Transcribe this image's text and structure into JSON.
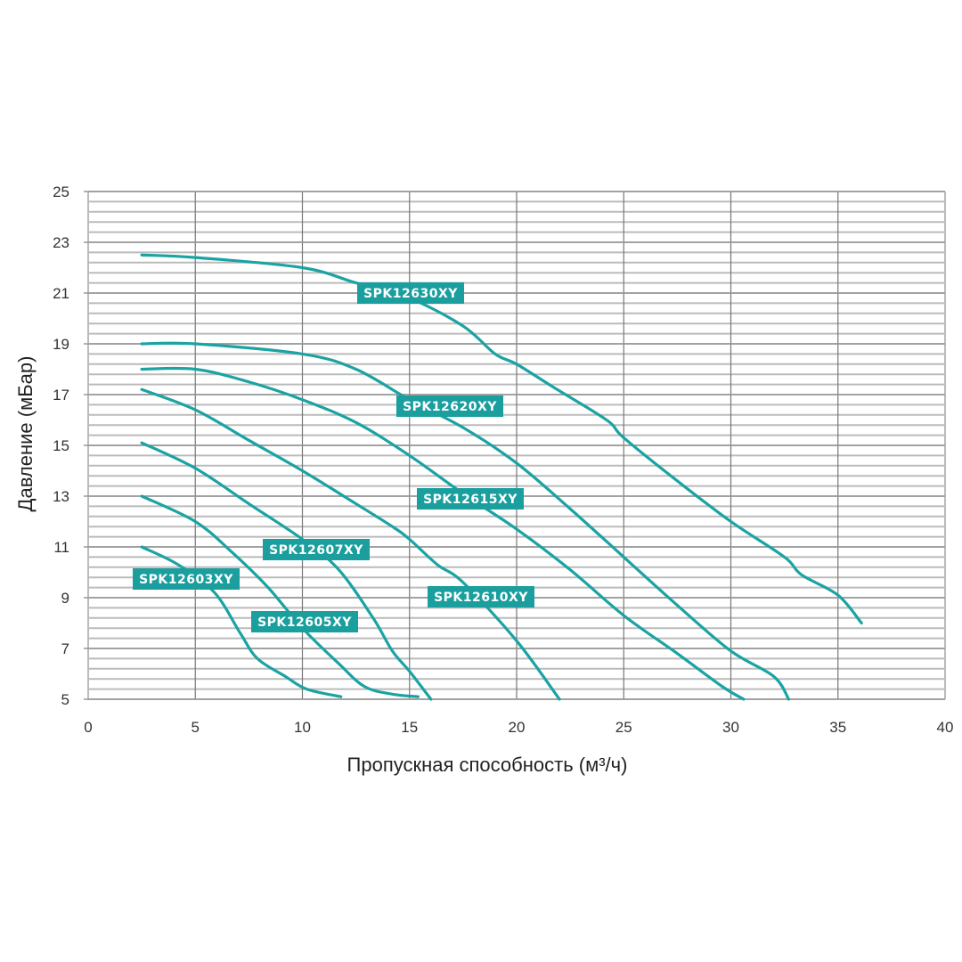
{
  "chart_data": {
    "type": "line",
    "title": "",
    "xlabel": "Пропускная способность (м³/ч)",
    "ylabel": "Давление (мБар)",
    "xlim": [
      0,
      40
    ],
    "ylim": [
      5,
      25
    ],
    "x_ticks": [
      0,
      5,
      10,
      15,
      20,
      25,
      30,
      35,
      40
    ],
    "y_ticks": [
      5,
      7,
      9,
      11,
      13,
      15,
      17,
      19,
      21,
      23,
      25
    ],
    "y_minor_step": 0.4,
    "grid": true,
    "legend": "inline labels",
    "colors": {
      "series": "#1ba3a3",
      "label_bg": "#1a9e9e",
      "grid": "#bbbbbb",
      "major_grid": "#777777"
    },
    "series": [
      {
        "name": "SPK12630XY",
        "points": [
          [
            2.5,
            22.5
          ],
          [
            5,
            22.4
          ],
          [
            10,
            22.0
          ],
          [
            12.5,
            21.4
          ],
          [
            15,
            20.8
          ],
          [
            17.5,
            19.7
          ],
          [
            19,
            18.6
          ],
          [
            20,
            18.2
          ],
          [
            21.7,
            17.3
          ],
          [
            24.2,
            16.0
          ],
          [
            25,
            15.3
          ],
          [
            27.5,
            13.6
          ],
          [
            30,
            12.0
          ],
          [
            32.5,
            10.6
          ],
          [
            33.3,
            9.9
          ],
          [
            35,
            9.1
          ],
          [
            36.1,
            8.0
          ]
        ]
      },
      {
        "name": "SPK12620XY",
        "points": [
          [
            2.5,
            19.0
          ],
          [
            5,
            19.0
          ],
          [
            10,
            18.6
          ],
          [
            12.5,
            18.0
          ],
          [
            15,
            16.8
          ],
          [
            17.5,
            15.7
          ],
          [
            20,
            14.3
          ],
          [
            22.5,
            12.5
          ],
          [
            25,
            10.6
          ],
          [
            27.5,
            8.7
          ],
          [
            30,
            6.9
          ],
          [
            32,
            5.9
          ],
          [
            32.7,
            5.0
          ]
        ]
      },
      {
        "name": "SPK12615XY",
        "points": [
          [
            2.5,
            18.0
          ],
          [
            5,
            18.0
          ],
          [
            7.5,
            17.5
          ],
          [
            10,
            16.8
          ],
          [
            12.5,
            15.9
          ],
          [
            15,
            14.6
          ],
          [
            17.5,
            13.1
          ],
          [
            20,
            11.7
          ],
          [
            22.5,
            10.1
          ],
          [
            25,
            8.3
          ],
          [
            27.5,
            6.8
          ],
          [
            29.6,
            5.5
          ],
          [
            30.6,
            5.0
          ]
        ]
      },
      {
        "name": "SPK12610XY",
        "points": [
          [
            2.5,
            17.2
          ],
          [
            5,
            16.4
          ],
          [
            7.5,
            15.2
          ],
          [
            10,
            14.0
          ],
          [
            12.5,
            12.7
          ],
          [
            14.2,
            11.8
          ],
          [
            15,
            11.3
          ],
          [
            16.3,
            10.3
          ],
          [
            17.5,
            9.6
          ],
          [
            20,
            7.3
          ],
          [
            22,
            5.0
          ]
        ]
      },
      {
        "name": "SPK12607XY",
        "points": [
          [
            2.5,
            15.1
          ],
          [
            5,
            14.1
          ],
          [
            7.5,
            12.7
          ],
          [
            10,
            11.3
          ],
          [
            11.7,
            10.1
          ],
          [
            13.3,
            8.2
          ],
          [
            14.2,
            6.9
          ],
          [
            15,
            6.1
          ],
          [
            16,
            5.0
          ]
        ]
      },
      {
        "name": "SPK12605XY",
        "points": [
          [
            2.5,
            13.0
          ],
          [
            5,
            12.0
          ],
          [
            6.7,
            10.8
          ],
          [
            8.4,
            9.4
          ],
          [
            10,
            7.8
          ],
          [
            11.7,
            6.4
          ],
          [
            12.9,
            5.5
          ],
          [
            14.2,
            5.2
          ],
          [
            15.4,
            5.1
          ]
        ]
      },
      {
        "name": "SPK12603XY",
        "points": [
          [
            2.5,
            11.0
          ],
          [
            4.2,
            10.3
          ],
          [
            5.9,
            9.2
          ],
          [
            7.1,
            7.6
          ],
          [
            7.9,
            6.6
          ],
          [
            9.2,
            5.9
          ],
          [
            10.2,
            5.4
          ],
          [
            11.8,
            5.1
          ]
        ]
      }
    ]
  }
}
